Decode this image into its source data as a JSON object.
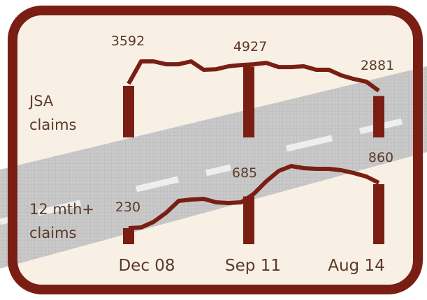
{
  "chart_data": {
    "type": "bar",
    "categories": [
      "Dec 08",
      "Sep 11",
      "Aug 14"
    ],
    "color": "#7a1e14",
    "series": [
      {
        "name": "JSA claims",
        "color": "#7a1e14",
        "values": [
          3592,
          4927,
          2881
        ],
        "trend": [
          3740,
          5290,
          5290,
          5090,
          5090,
          5290,
          4710,
          4750,
          4950,
          5040,
          5090,
          5190,
          4900,
          4900,
          4950,
          4710,
          4710,
          4320,
          4070,
          3880,
          3250
        ]
      },
      {
        "name": "12 mth+ claims",
        "color": "#7a1e14",
        "values": [
          230,
          685,
          860
        ],
        "trend": [
          230,
          240,
          320,
          450,
          620,
          640,
          650,
          600,
          590,
          600,
          720,
          900,
          1050,
          1120,
          1090,
          1080,
          1080,
          1060,
          1020,
          970,
          880
        ]
      }
    ]
  }
}
